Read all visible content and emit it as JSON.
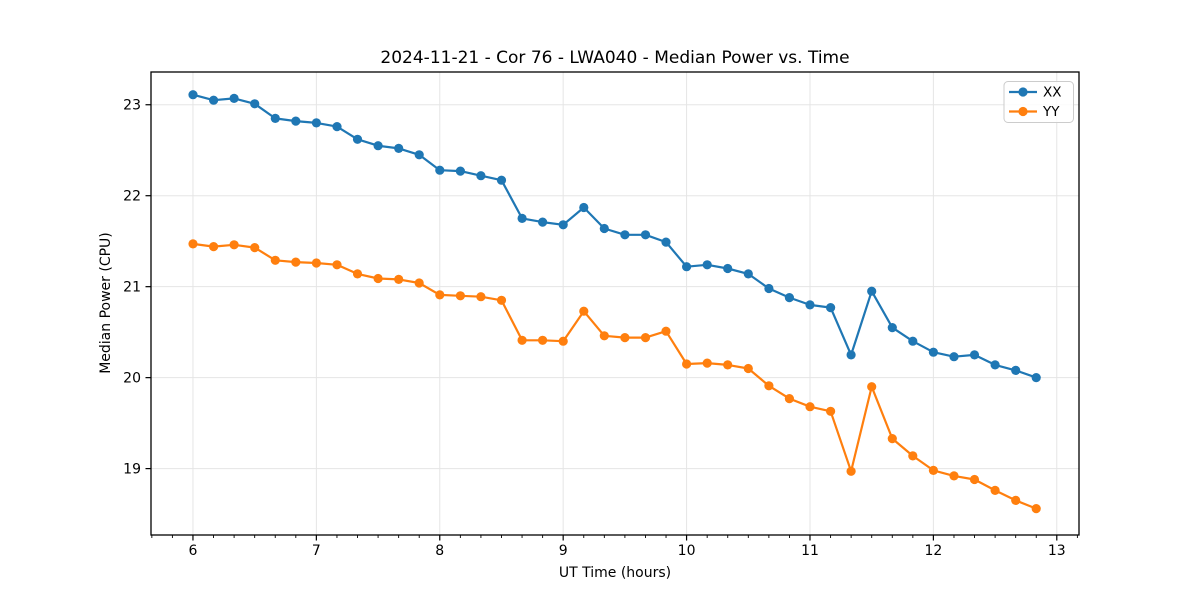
{
  "figure": {
    "title": "2024-11-21 - Cor 76 - LWA040 - Median Power vs. Time",
    "xlabel": "UT Time (hours)",
    "ylabel": "Median Power (CPU)"
  },
  "chart_data": {
    "type": "line",
    "title": "2024-11-21 - Cor 76 - LWA040 - Median Power vs. Time",
    "xlabel": "UT Time (hours)",
    "ylabel": "Median Power (CPU)",
    "xlim": [
      5.66,
      13.18
    ],
    "ylim": [
      18.27,
      23.36
    ],
    "xticks": [
      6,
      7,
      8,
      9,
      10,
      11,
      12,
      13
    ],
    "yticks": [
      19,
      20,
      21,
      22,
      23
    ],
    "minor_xtick_step": 0.16667,
    "grid": true,
    "grid_color": "#e5e5e5",
    "spine_color": "#000000",
    "legend_position": "upper right",
    "x": [
      6.0,
      6.167,
      6.333,
      6.5,
      6.667,
      6.833,
      7.0,
      7.167,
      7.333,
      7.5,
      7.667,
      7.833,
      8.0,
      8.167,
      8.333,
      8.5,
      8.667,
      8.833,
      9.0,
      9.167,
      9.333,
      9.5,
      9.667,
      9.833,
      10.0,
      10.167,
      10.333,
      10.5,
      10.667,
      10.833,
      11.0,
      11.167,
      11.333,
      11.5,
      11.667,
      11.833,
      12.0,
      12.167,
      12.333,
      12.5,
      12.667,
      12.833
    ],
    "series": [
      {
        "name": "XX",
        "color": "#1f77b4",
        "values": [
          23.11,
          23.05,
          23.07,
          23.01,
          22.85,
          22.82,
          22.8,
          22.76,
          22.62,
          22.55,
          22.52,
          22.45,
          22.28,
          22.27,
          22.22,
          22.17,
          21.75,
          21.71,
          21.68,
          21.87,
          21.64,
          21.57,
          21.57,
          21.49,
          21.22,
          21.24,
          21.2,
          21.14,
          20.98,
          20.88,
          20.8,
          20.77,
          20.25,
          20.95,
          20.55,
          20.4,
          20.28,
          20.23,
          20.25,
          20.14,
          20.08,
          20.0
        ]
      },
      {
        "name": "YY",
        "color": "#ff7f0e",
        "values": [
          21.47,
          21.44,
          21.46,
          21.43,
          21.29,
          21.27,
          21.26,
          21.24,
          21.14,
          21.09,
          21.08,
          21.04,
          20.91,
          20.9,
          20.89,
          20.85,
          20.41,
          20.41,
          20.4,
          20.73,
          20.46,
          20.44,
          20.44,
          20.51,
          20.15,
          20.16,
          20.14,
          20.1,
          19.91,
          19.77,
          19.68,
          19.63,
          18.97,
          19.9,
          19.33,
          19.14,
          18.98,
          18.92,
          18.88,
          18.76,
          18.65,
          18.56
        ]
      }
    ]
  }
}
